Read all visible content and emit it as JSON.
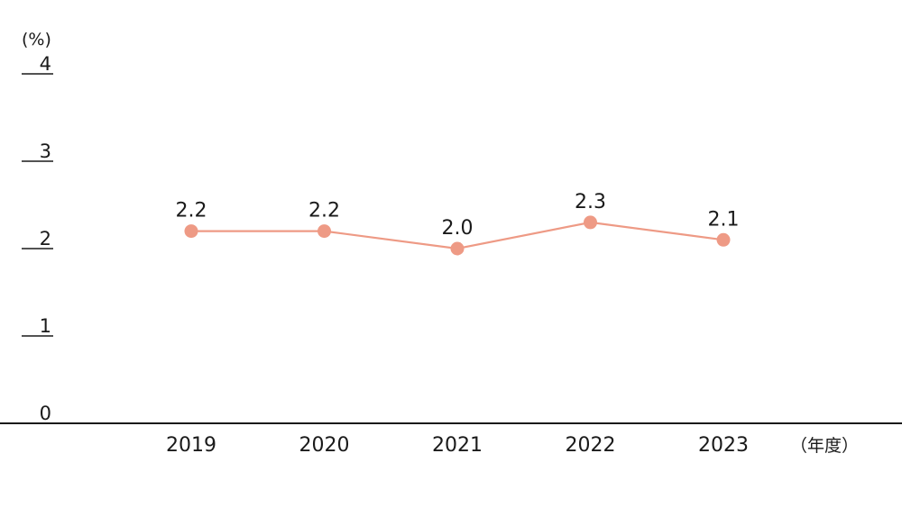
{
  "chart_data": {
    "type": "line",
    "title": "",
    "ylabel": "(%)",
    "xlabel": "（年度）",
    "categories": [
      "2019",
      "2020",
      "2021",
      "2022",
      "2023"
    ],
    "series": [
      {
        "values": [
          2.2,
          2.2,
          2.0,
          2.3,
          2.1
        ],
        "labels": [
          "2.2",
          "2.2",
          "2.0",
          "2.3",
          "2.1"
        ],
        "color": "#ee9a85"
      }
    ],
    "ylim": [
      0,
      4
    ],
    "yticks": [
      0,
      1,
      2,
      3,
      4
    ],
    "ytick_labels": [
      "0",
      "1",
      "2",
      "3",
      "4"
    ],
    "grid": false,
    "legend": "none",
    "axis_color": "#1a1a1a"
  }
}
